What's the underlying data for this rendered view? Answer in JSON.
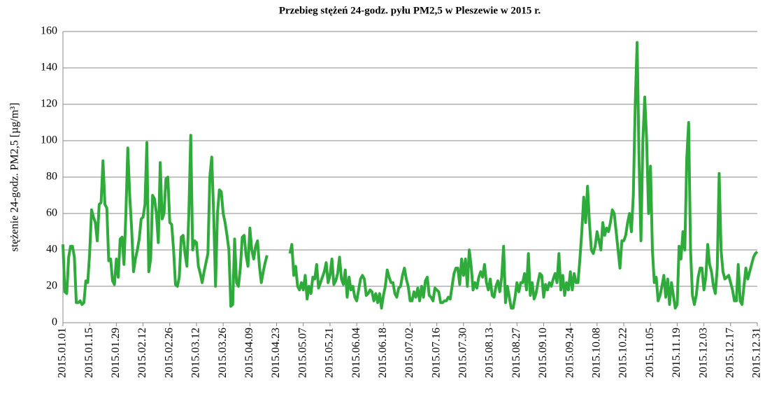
{
  "chart_data": {
    "type": "line",
    "title": "Przebieg stężeń 24-godz. pyłu PM2,5 w Pleszewie w 2015 r.",
    "y_label": "stężenie 24-godz. PM2,5 [µg/m³]",
    "categories": [
      "2015.01.01",
      null,
      null,
      null,
      null,
      null,
      null,
      null,
      null,
      null,
      null,
      null,
      null,
      null,
      "2015.01.15",
      null,
      null,
      null,
      null,
      null,
      null,
      null,
      null,
      null,
      null,
      null,
      null,
      null,
      "2015.01.29",
      null,
      null,
      null,
      null,
      null,
      null,
      null,
      null,
      null,
      null,
      null,
      null,
      null,
      "2015.02.12",
      null,
      null,
      null,
      null,
      null,
      null,
      null,
      null,
      null,
      null,
      null,
      null,
      null,
      "2015.02.26",
      null,
      null,
      null,
      null,
      null,
      null,
      null,
      null,
      null,
      null,
      null,
      null,
      null,
      "2015.03.12",
      null,
      null,
      null,
      null,
      null,
      null,
      null,
      null,
      null,
      null,
      null,
      null,
      null,
      "2015.03.26",
      null,
      null,
      null,
      null,
      null,
      null,
      null,
      null,
      null,
      null,
      null,
      null,
      null,
      "2015.04.09",
      null,
      null,
      null,
      null,
      null,
      null,
      null,
      null,
      null,
      null,
      null,
      null,
      null,
      "2015.04.23",
      null,
      null,
      null,
      null,
      null,
      null,
      null,
      null,
      null,
      null,
      null,
      null,
      null,
      "2015.05.07",
      null,
      null,
      null,
      null,
      null,
      null,
      null,
      null,
      null,
      null,
      null,
      null,
      null,
      "2015.05.21",
      null,
      null,
      null,
      null,
      null,
      null,
      null,
      null,
      null,
      null,
      null,
      null,
      null,
      "2015.06.04",
      null,
      null,
      null,
      null,
      null,
      null,
      null,
      null,
      null,
      null,
      null,
      null,
      null,
      "2015.06.18",
      null,
      null,
      null,
      null,
      null,
      null,
      null,
      null,
      null,
      null,
      null,
      null,
      null,
      "2015.07.02",
      null,
      null,
      null,
      null,
      null,
      null,
      null,
      null,
      null,
      null,
      null,
      null,
      null,
      "2015.07.16",
      null,
      null,
      null,
      null,
      null,
      null,
      null,
      null,
      null,
      null,
      null,
      null,
      null,
      "2015.07.30",
      null,
      null,
      null,
      null,
      null,
      null,
      null,
      null,
      null,
      null,
      null,
      null,
      null,
      "2015.08.13",
      null,
      null,
      null,
      null,
      null,
      null,
      null,
      null,
      null,
      null,
      null,
      null,
      null,
      "2015.08.27",
      null,
      null,
      null,
      null,
      null,
      null,
      null,
      null,
      null,
      null,
      null,
      null,
      null,
      "2015.09.10",
      null,
      null,
      null,
      null,
      null,
      null,
      null,
      null,
      null,
      null,
      null,
      null,
      null,
      "2015.09.24",
      null,
      null,
      null,
      null,
      null,
      null,
      null,
      null,
      null,
      null,
      null,
      null,
      null,
      "2015.10.08",
      null,
      null,
      null,
      null,
      null,
      null,
      null,
      null,
      null,
      null,
      null,
      null,
      null,
      "2015.10.22",
      null,
      null,
      null,
      null,
      null,
      null,
      null,
      null,
      null,
      null,
      null,
      null,
      null,
      "2015.11.05",
      null,
      null,
      null,
      null,
      null,
      null,
      null,
      null,
      null,
      null,
      null,
      null,
      null,
      "2015.11.19",
      null,
      null,
      null,
      null,
      null,
      null,
      null,
      null,
      null,
      null,
      null,
      null,
      null,
      "2015.12.03",
      null,
      null,
      null,
      null,
      null,
      null,
      null,
      null,
      null,
      null,
      null,
      null,
      null,
      "2015.12.17",
      null,
      null,
      null,
      null,
      null,
      null,
      null,
      null,
      null,
      null,
      null,
      null,
      null,
      "2015.12.31"
    ],
    "values": [
      43,
      17,
      16,
      36,
      42,
      42,
      36,
      11,
      11,
      12,
      10,
      11,
      23,
      22,
      38,
      62,
      58,
      55,
      45,
      65,
      66,
      89,
      65,
      63,
      34,
      35,
      23,
      21,
      35,
      25,
      46,
      47,
      32,
      60,
      96,
      70,
      52,
      28,
      35,
      40,
      46,
      57,
      58,
      65,
      99,
      28,
      35,
      70,
      68,
      60,
      44,
      88,
      57,
      60,
      79,
      80,
      55,
      54,
      40,
      21,
      20,
      25,
      47,
      48,
      38,
      31,
      60,
      103,
      40,
      45,
      44,
      31,
      27,
      22,
      28,
      33,
      38,
      80,
      91,
      60,
      20,
      60,
      73,
      72,
      60,
      55,
      48,
      40,
      9,
      10,
      46,
      22,
      20,
      30,
      47,
      48,
      37,
      31,
      52,
      40,
      35,
      42,
      45,
      31,
      22,
      28,
      33,
      37,
      null,
      null,
      null,
      null,
      null,
      null,
      null,
      null,
      null,
      null,
      null,
      38,
      43,
      26,
      31,
      20,
      18,
      22,
      18,
      26,
      13,
      20,
      16,
      25,
      24,
      32,
      19,
      22,
      25,
      28,
      33,
      22,
      26,
      35,
      21,
      23,
      27,
      36,
      24,
      21,
      29,
      14,
      25,
      18,
      20,
      14,
      12,
      18,
      24,
      26,
      24,
      15,
      16,
      18,
      17,
      12,
      16,
      11,
      16,
      8,
      15,
      20,
      29,
      25,
      22,
      22,
      16,
      14,
      19,
      20,
      26,
      30,
      24,
      20,
      12,
      12,
      17,
      14,
      19,
      12,
      20,
      14,
      23,
      25,
      15,
      14,
      12,
      19,
      18,
      17,
      11,
      11,
      12,
      12,
      14,
      13,
      20,
      27,
      30,
      30,
      21,
      35,
      26,
      35,
      20,
      40,
      31,
      18,
      22,
      19,
      25,
      28,
      25,
      32,
      22,
      18,
      24,
      15,
      14,
      20,
      23,
      17,
      25,
      42,
      11,
      20,
      14,
      8,
      8,
      14,
      22,
      17,
      22,
      22,
      27,
      18,
      38,
      15,
      22,
      13,
      16,
      22,
      27,
      26,
      14,
      21,
      18,
      22,
      20,
      24,
      27,
      22,
      38,
      18,
      26,
      15,
      22,
      18,
      28,
      18,
      27,
      22,
      22,
      35,
      50,
      69,
      55,
      75,
      55,
      40,
      38,
      42,
      50,
      45,
      40,
      55,
      48,
      52,
      50,
      55,
      62,
      60,
      50,
      40,
      30,
      45,
      45,
      48,
      55,
      60,
      50,
      70,
      120,
      154,
      90,
      45,
      100,
      124,
      100,
      60,
      86,
      40,
      22,
      25,
      12,
      15,
      20,
      26,
      14,
      24,
      10,
      22,
      15,
      8,
      10,
      42,
      35,
      50,
      40,
      90,
      110,
      40,
      15,
      10,
      15,
      25,
      30,
      30,
      18,
      25,
      43,
      32,
      28,
      20,
      16,
      30,
      82,
      40,
      28,
      24,
      25,
      26,
      22,
      18,
      12,
      12,
      32,
      12,
      10,
      20,
      30,
      24,
      28,
      32,
      36,
      38,
      39
    ],
    "color": "#2eab3a",
    "ylim": [
      0,
      160
    ],
    "yticks": [
      0,
      20,
      40,
      60,
      80,
      100,
      120,
      140,
      160
    ],
    "grid": true
  }
}
